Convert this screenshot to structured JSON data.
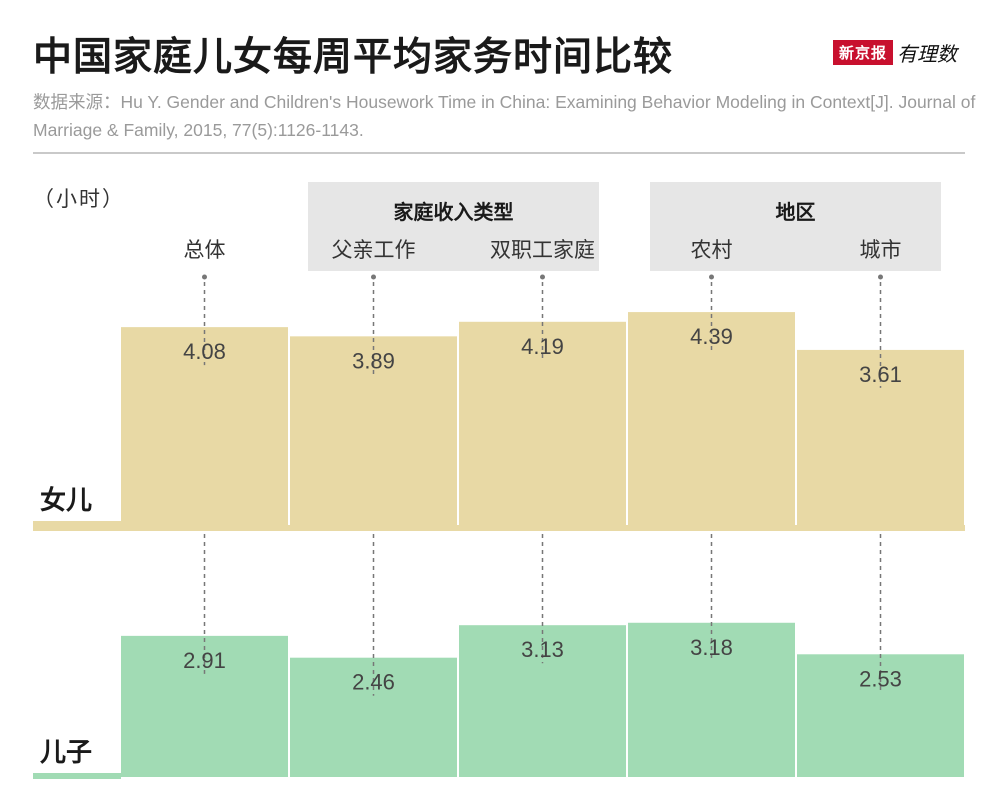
{
  "header": {
    "title": "中国家庭儿女每周平均家务时间比较",
    "logo_text": "新京报",
    "logo_script": "有理数",
    "source": "数据来源：Hu Y. Gender and Children's Housework Time in China: Examining Behavior Modeling in Context[J]. Journal of Marriage & Family, 2015, 77(5):1126-1143."
  },
  "chart_data": {
    "type": "bar",
    "unit": "（小时）",
    "groups": [
      {
        "title": "家庭收入类型",
        "categories": [
          "父亲工作",
          "双职工家庭"
        ]
      },
      {
        "title": "地区",
        "categories": [
          "农村",
          "城市"
        ]
      }
    ],
    "categories": [
      "总体",
      "父亲工作",
      "双职工家庭",
      "农村",
      "城市"
    ],
    "series": [
      {
        "name": "女儿",
        "values": [
          4.08,
          3.89,
          4.19,
          4.39,
          3.61
        ],
        "color": "#e8d9a5"
      },
      {
        "name": "儿子",
        "values": [
          2.91,
          2.46,
          3.13,
          3.18,
          2.53
        ],
        "color": "#a1dbb4"
      }
    ],
    "baseline_color": "#e8d9a5",
    "baseline_color_2": "#a1dbb4"
  }
}
